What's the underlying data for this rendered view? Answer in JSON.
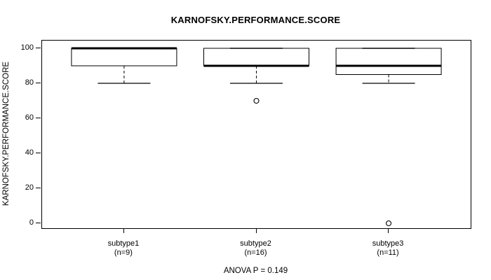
{
  "figure": {
    "background": "#ffffff",
    "foreground": "#000000"
  },
  "chart_data": {
    "type": "boxplot",
    "title": "KARNOFSKY.PERFORMANCE.SCORE",
    "ylabel": "KARNOFSKY.PERFORMANCE.SCORE",
    "xlabel": "",
    "ylim": [
      0,
      100
    ],
    "yticks": [
      0,
      20,
      40,
      60,
      80,
      100
    ],
    "grid": false,
    "legend": "none",
    "footer": "ANOVA P = 0.149",
    "groups": [
      {
        "label": "subtype1",
        "sublabel": "(n=9)",
        "n": 9,
        "whisker_low": 80,
        "q1": 90,
        "median": 100,
        "q3": 100,
        "whisker_high": 100,
        "outliers": []
      },
      {
        "label": "subtype2",
        "sublabel": "(n=16)",
        "n": 16,
        "whisker_low": 80,
        "q1": 90,
        "median": 90,
        "q3": 100,
        "whisker_high": 100,
        "outliers": [
          70
        ]
      },
      {
        "label": "subtype3",
        "sublabel": "(n=11)",
        "n": 11,
        "whisker_low": 80,
        "q1": 85,
        "median": 90,
        "q3": 100,
        "whisker_high": 100,
        "outliers": [
          0
        ]
      }
    ]
  }
}
